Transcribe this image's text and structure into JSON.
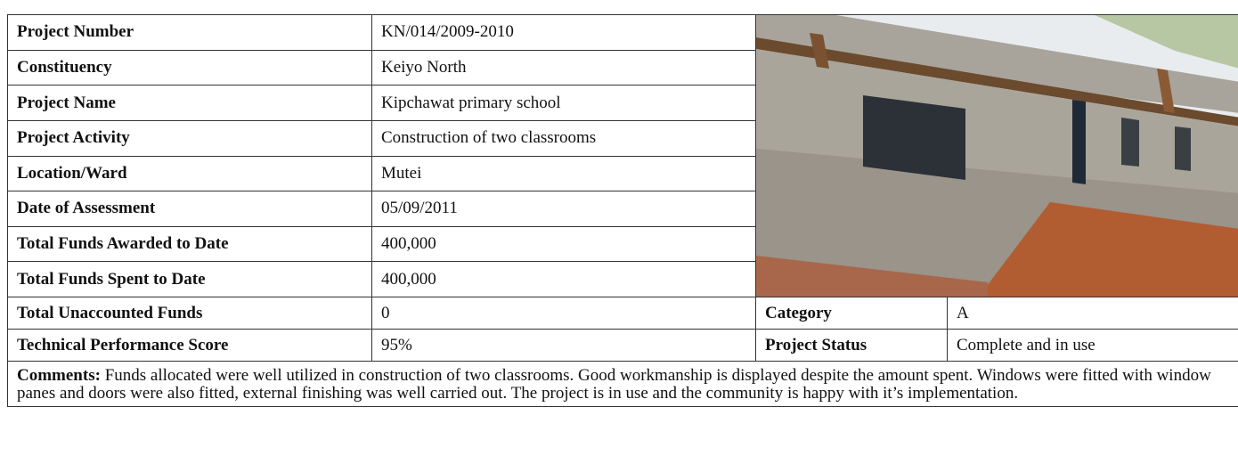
{
  "rows": [
    {
      "label": "Project Number",
      "value": "KN/014/2009-2010"
    },
    {
      "label": "Constituency",
      "value": "Keiyo North"
    },
    {
      "label": "Project Name",
      "value": "Kipchawat primary school"
    },
    {
      "label": "Project Activity",
      "value": "Construction of two classrooms"
    },
    {
      "label": "Location/Ward",
      "value": "Mutei"
    },
    {
      "label": "Date of Assessment",
      "value": "05/09/2011"
    },
    {
      "label": "Total Funds Awarded to Date",
      "value": "400,000"
    },
    {
      "label": "Total Funds Spent to Date",
      "value": "400,000"
    },
    {
      "label": "Total Unaccounted Funds",
      "value": "0"
    },
    {
      "label": "Technical Performance Score",
      "value": "95%"
    }
  ],
  "side": [
    {
      "label": "Category",
      "value": "A"
    },
    {
      "label": "Project Status",
      "value": "Complete and in use"
    }
  ],
  "comments": {
    "label": "Comments:",
    "text": "Funds allocated were well utilized in construction of two classrooms. Good workmanship is displayed despite the amount spent. Windows were fitted with window panes and doors were also fitted, external finishing was well carried out. The project is in use and the community is happy with it’s implementation."
  }
}
